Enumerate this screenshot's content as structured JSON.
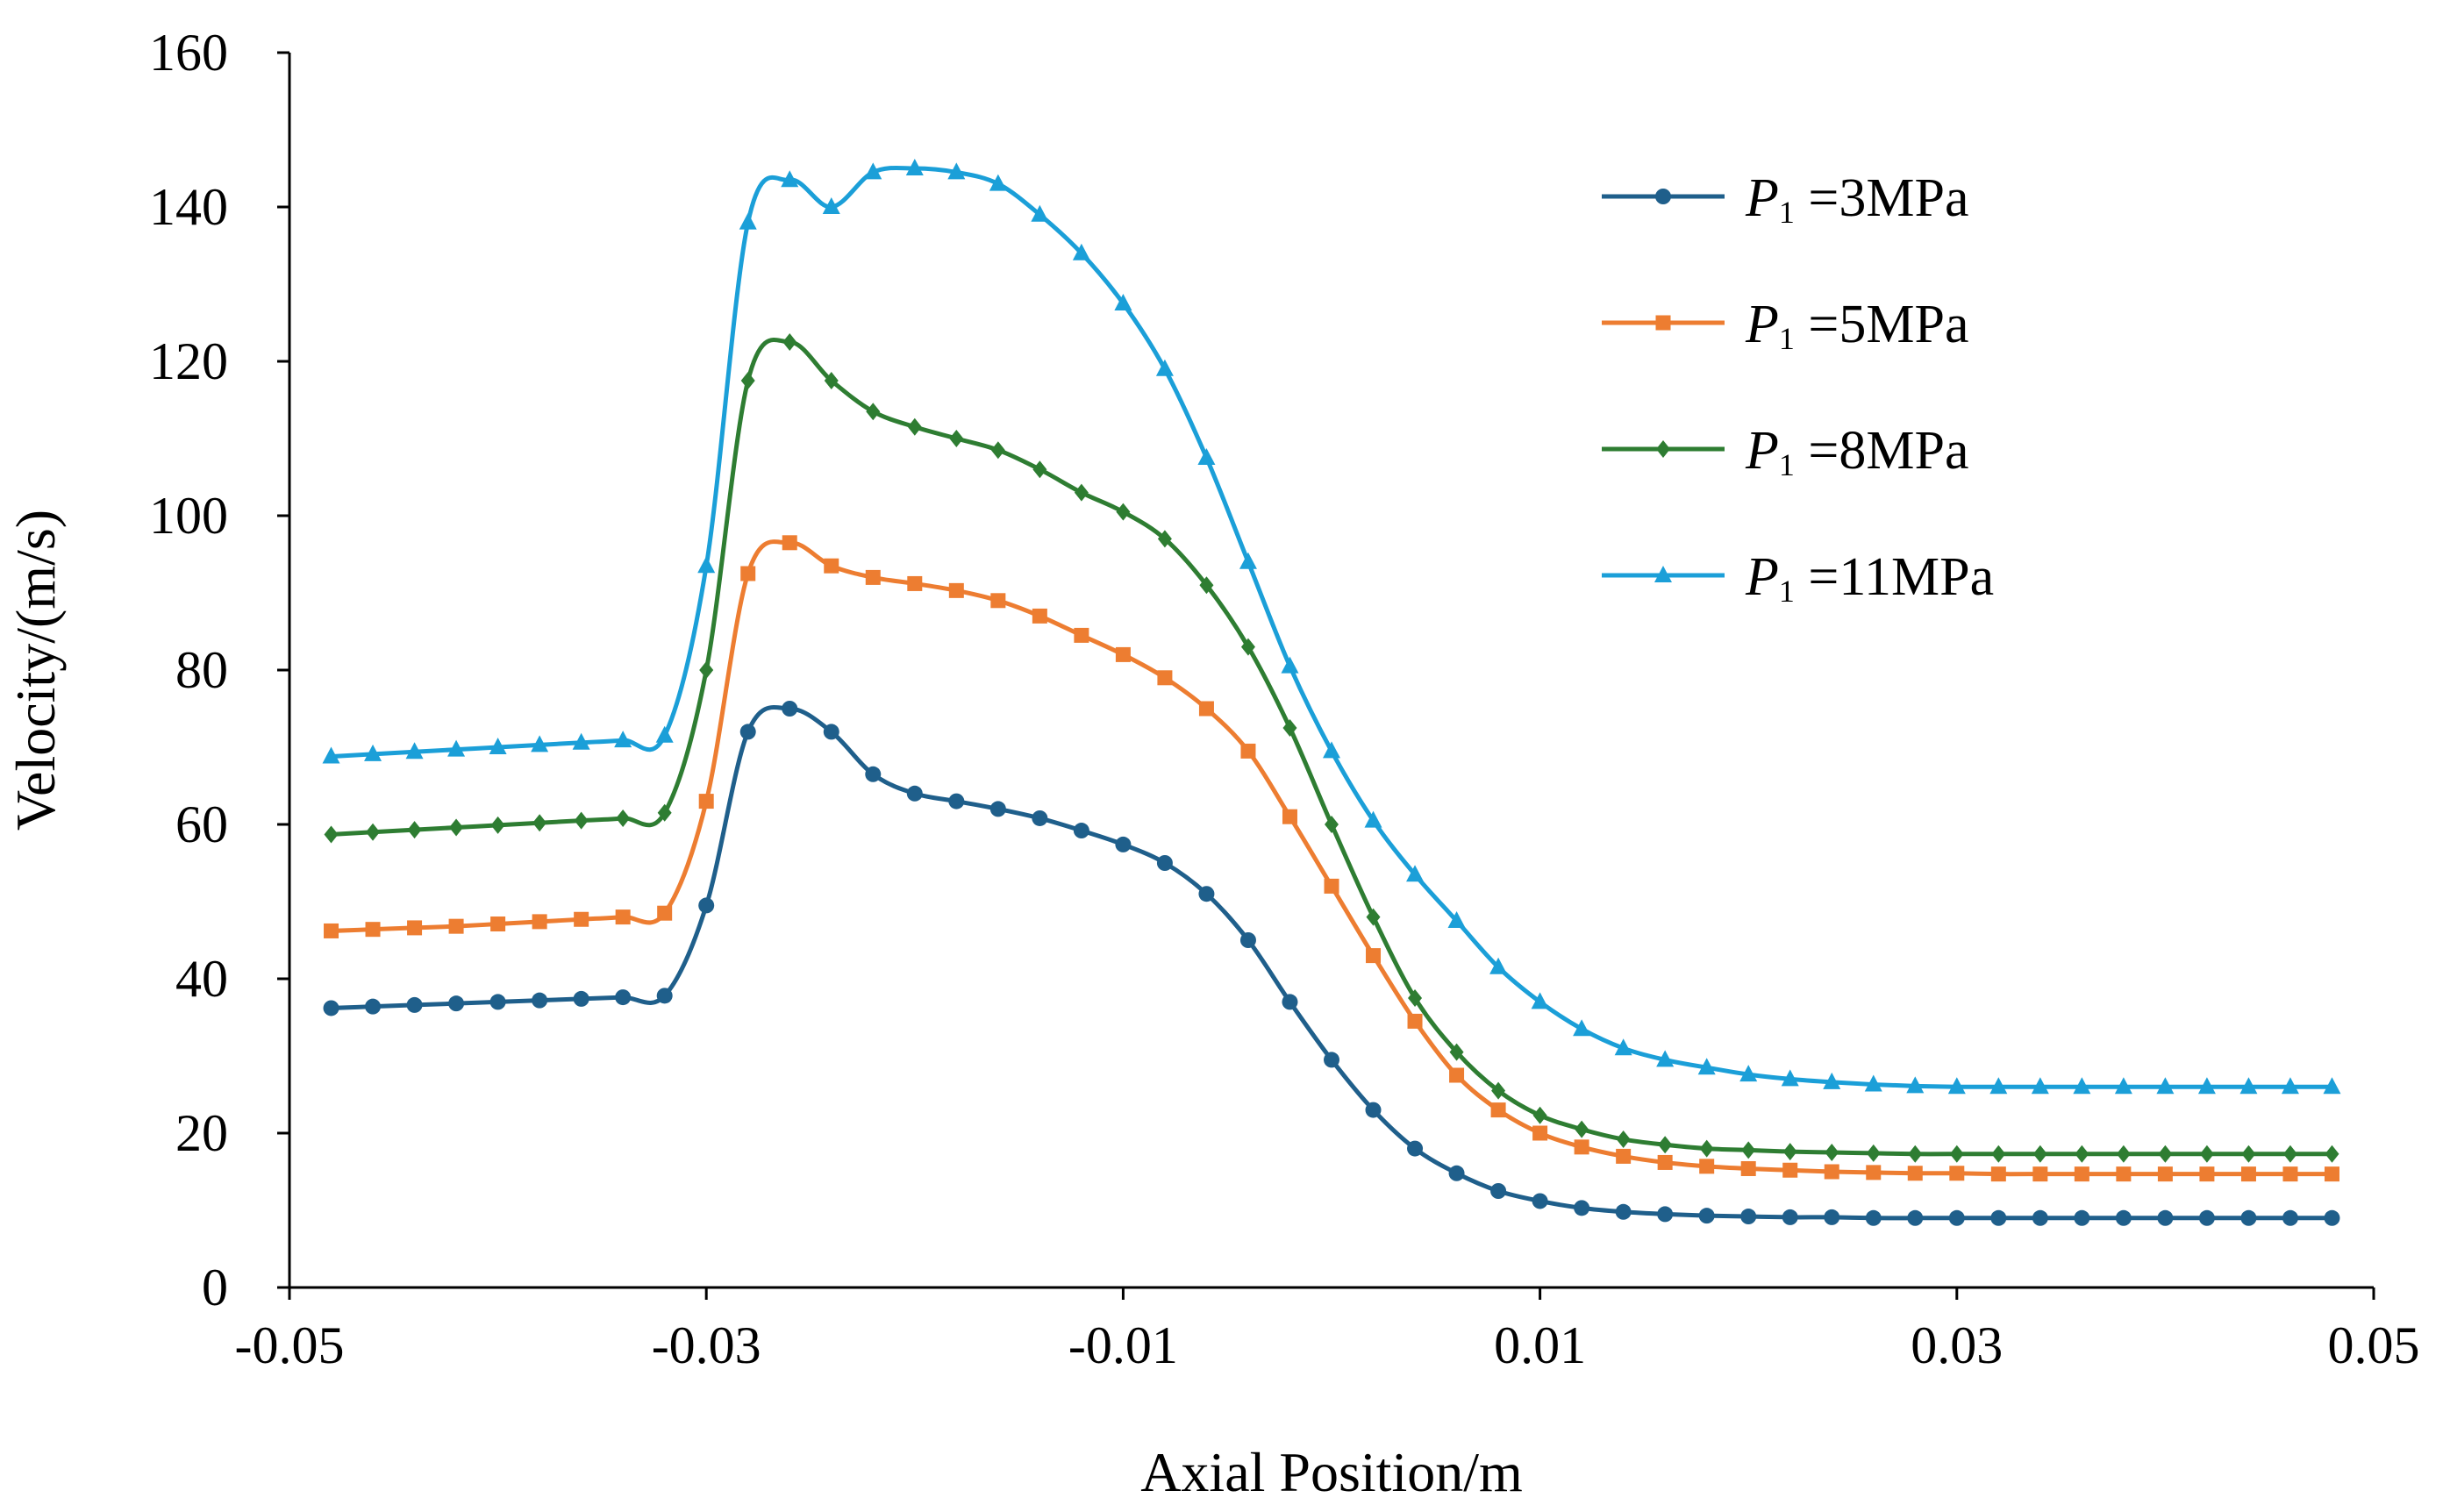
{
  "chart_data": {
    "type": "line",
    "title": "",
    "xlabel": "Axial Position/m",
    "ylabel": "Velocity/(m/s)",
    "xlim": [
      -0.05,
      0.05
    ],
    "ylim": [
      0,
      160
    ],
    "xticks": [
      -0.05,
      -0.03,
      -0.01,
      0.01,
      0.03,
      0.05
    ],
    "xtick_labels": [
      "-0.05",
      "-0.03",
      "-0.01",
      "0.01",
      "0.03",
      "0.05"
    ],
    "yticks": [
      0,
      20,
      40,
      60,
      80,
      100,
      120,
      140,
      160
    ],
    "ytick_labels": [
      "0",
      "20",
      "40",
      "60",
      "80",
      "100",
      "120",
      "140",
      "160"
    ],
    "grid": false,
    "legend_position": "top-right",
    "x": [
      -0.048,
      -0.046,
      -0.044,
      -0.042,
      -0.04,
      -0.038,
      -0.036,
      -0.034,
      -0.032,
      -0.03,
      -0.028,
      -0.026,
      -0.024,
      -0.022,
      -0.02,
      -0.018,
      -0.016,
      -0.014,
      -0.012,
      -0.01,
      -0.008,
      -0.006,
      -0.004,
      -0.002,
      0.0,
      0.002,
      0.004,
      0.006,
      0.008,
      0.01,
      0.012,
      0.014,
      0.016,
      0.018,
      0.02,
      0.022,
      0.024,
      0.026,
      0.028,
      0.03,
      0.032,
      0.034,
      0.036,
      0.038,
      0.04,
      0.042,
      0.044,
      0.046,
      0.048
    ],
    "series": [
      {
        "name": "3MPa",
        "label_symbol": "P",
        "label_subscript": "1",
        "label_value": " =3MPa",
        "color": "#1f5f8b",
        "marker": "circle",
        "values": [
          36.2,
          36.4,
          36.6,
          36.8,
          37.0,
          37.2,
          37.4,
          37.6,
          37.8,
          49.5,
          72.0,
          75.0,
          72.0,
          66.5,
          64.0,
          63.0,
          62.0,
          60.8,
          59.2,
          57.4,
          55.0,
          51.0,
          45.0,
          37.0,
          29.5,
          23.0,
          18.0,
          14.8,
          12.5,
          11.2,
          10.3,
          9.8,
          9.5,
          9.3,
          9.2,
          9.1,
          9.1,
          9.0,
          9.0,
          9.0,
          9.0,
          9.0,
          9.0,
          9.0,
          9.0,
          9.0,
          9.0,
          9.0,
          9.0
        ]
      },
      {
        "name": "5MPa",
        "label_symbol": "P",
        "label_subscript": "1",
        "label_value": " =5MPa",
        "color": "#ed7d31",
        "marker": "square",
        "values": [
          46.2,
          46.4,
          46.6,
          46.8,
          47.1,
          47.4,
          47.7,
          48.0,
          48.5,
          63.0,
          92.5,
          96.5,
          93.5,
          92.0,
          91.2,
          90.3,
          89.0,
          87.0,
          84.5,
          82.0,
          79.0,
          75.0,
          69.5,
          61.0,
          52.0,
          43.0,
          34.5,
          27.5,
          23.0,
          20.0,
          18.2,
          17.0,
          16.2,
          15.7,
          15.4,
          15.2,
          15.0,
          14.9,
          14.8,
          14.8,
          14.7,
          14.7,
          14.7,
          14.7,
          14.7,
          14.7,
          14.7,
          14.7,
          14.7
        ]
      },
      {
        "name": "8MPa",
        "label_symbol": "P",
        "label_subscript": "1",
        "label_value": " =8MPa",
        "color": "#2e7d32",
        "marker": "diamond",
        "values": [
          58.7,
          59.0,
          59.3,
          59.6,
          59.9,
          60.2,
          60.5,
          60.8,
          61.5,
          80.0,
          117.5,
          122.5,
          117.5,
          113.5,
          111.5,
          110.0,
          108.5,
          106.0,
          103.0,
          100.5,
          97.0,
          91.0,
          83.0,
          72.5,
          60.0,
          48.0,
          37.5,
          30.5,
          25.5,
          22.3,
          20.5,
          19.2,
          18.5,
          18.0,
          17.8,
          17.6,
          17.5,
          17.4,
          17.3,
          17.3,
          17.3,
          17.3,
          17.3,
          17.3,
          17.3,
          17.3,
          17.3,
          17.3,
          17.3
        ]
      },
      {
        "name": "11MPa",
        "label_symbol": "P",
        "label_subscript": "1",
        "label_value": " =11MPa",
        "color": "#1b9fd8",
        "marker": "triangle",
        "values": [
          68.8,
          69.1,
          69.4,
          69.7,
          70.0,
          70.3,
          70.6,
          70.9,
          71.5,
          93.5,
          138.0,
          143.5,
          140.0,
          144.5,
          145.0,
          144.5,
          143.0,
          139.0,
          134.0,
          127.5,
          119.0,
          107.5,
          94.0,
          80.5,
          69.5,
          60.5,
          53.5,
          47.5,
          41.5,
          37.0,
          33.5,
          31.0,
          29.5,
          28.5,
          27.6,
          27.0,
          26.6,
          26.3,
          26.1,
          26.0,
          26.0,
          26.0,
          26.0,
          26.0,
          26.0,
          26.0,
          26.0,
          26.0,
          26.0
        ]
      }
    ]
  }
}
